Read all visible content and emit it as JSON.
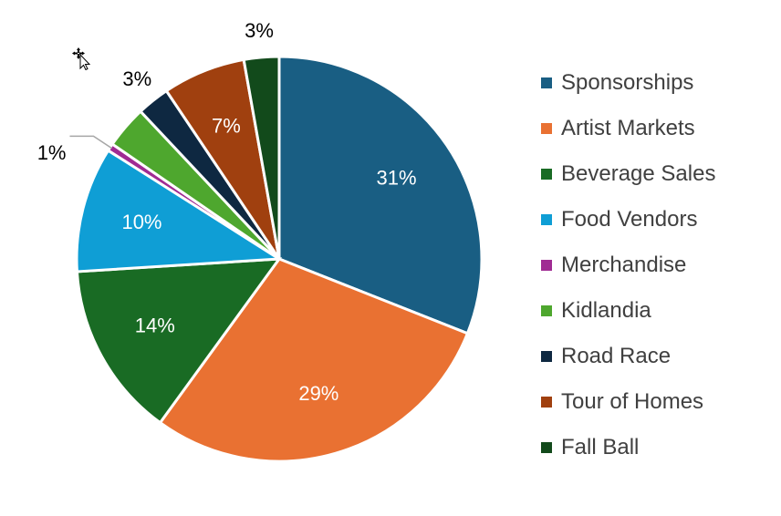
{
  "chart_data": {
    "type": "pie",
    "title": "",
    "slices": [
      {
        "name": "Sponsorships",
        "value": 31,
        "label": "31%",
        "color": "#195E83",
        "label_color": "#ffffff"
      },
      {
        "name": "Artist Markets",
        "value": 29,
        "label": "29%",
        "color": "#E97132",
        "label_color": "#ffffff"
      },
      {
        "name": "Beverage Sales",
        "value": 14,
        "label": "14%",
        "color": "#196B24",
        "label_color": "#ffffff"
      },
      {
        "name": "Food Vendors",
        "value": 10,
        "label": "10%",
        "color": "#0F9ED5",
        "label_color": "#ffffff"
      },
      {
        "name": "Merchandise",
        "value": 0.6,
        "label": "1%",
        "color": "#A02B93",
        "label_color": "#000000"
      },
      {
        "name": "Kidlandia",
        "value": 3.4,
        "label": "",
        "color": "#4EA72E",
        "label_color": "#000000"
      },
      {
        "name": "Road Race",
        "value": 2.6,
        "label": "3%",
        "color": "#0E2841",
        "label_color": "#000000"
      },
      {
        "name": "Tour of Homes",
        "value": 6.6,
        "label": "7%",
        "color": "#A0400F",
        "label_color": "#ffffff"
      },
      {
        "name": "Fall Ball",
        "value": 2.8,
        "label": "3%",
        "color": "#124A1B",
        "label_color": "#000000"
      }
    ],
    "legend_position": "right"
  },
  "icons": {
    "cursor": "move-cursor-icon"
  }
}
